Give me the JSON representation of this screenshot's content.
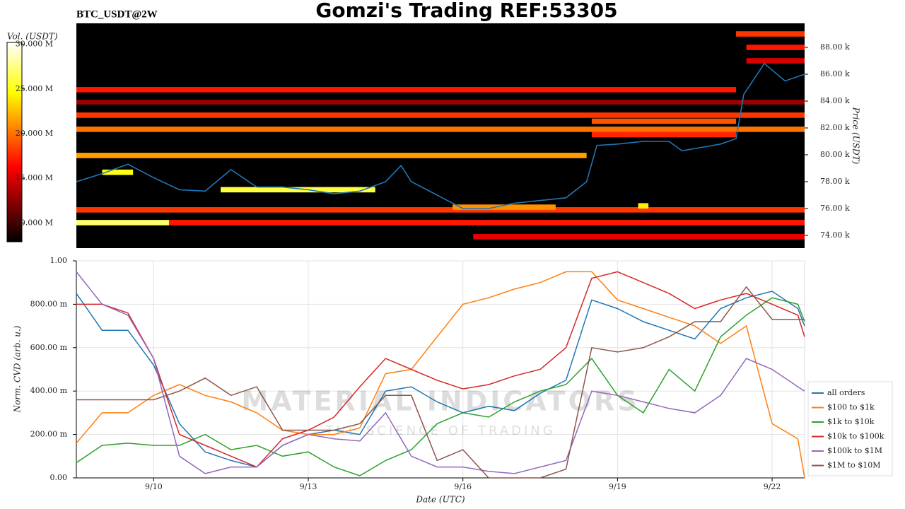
{
  "chart_data": [
    {
      "type": "heatmap",
      "title": "Gomzi's Trading REF:53305",
      "subtitle": "BTC_USDT@2W",
      "ylabel": "Price (USDT)",
      "xlim": [
        8.5,
        22.63
      ],
      "ylim": [
        73050,
        89790
      ],
      "yticks": [
        {
          "value": 74000,
          "label": "74.00 k"
        },
        {
          "value": 76000,
          "label": "76.00 k"
        },
        {
          "value": 78000,
          "label": "78.00 k"
        },
        {
          "value": 80000,
          "label": "80.00 k"
        },
        {
          "value": 82000,
          "label": "82.00 k"
        },
        {
          "value": 84000,
          "label": "84.00 k"
        },
        {
          "value": 86000,
          "label": "86.00 k"
        },
        {
          "value": 88000,
          "label": "88.00 k"
        }
      ],
      "colorbar": {
        "label": "Vol. (USDT)",
        "colormap": "hot",
        "lim": [
          7900000,
          30200000
        ],
        "ticks": [
          {
            "value": 10000000,
            "label": "10.000 M"
          },
          {
            "value": 15000000,
            "label": "15.000 M"
          },
          {
            "value": 20000000,
            "label": "20.000 M"
          },
          {
            "value": 25000000,
            "label": "25.000 M"
          },
          {
            "value": 30000000,
            "label": "30.000 M"
          }
        ]
      },
      "bands": [
        {
          "start": 8.5,
          "end": 21.3,
          "low": 84650,
          "high": 85050,
          "volume": 17000000
        },
        {
          "start": 8.5,
          "end": 22.63,
          "low": 83750,
          "high": 84100,
          "volume": 13000000
        },
        {
          "start": 8.5,
          "end": 22.63,
          "low": 82750,
          "high": 83150,
          "volume": 18000000
        },
        {
          "start": 8.5,
          "end": 22.63,
          "low": 81700,
          "high": 82100,
          "volume": 20000000
        },
        {
          "start": 8.5,
          "end": 18.4,
          "low": 79750,
          "high": 80150,
          "volume": 21500000
        },
        {
          "start": 8.5,
          "end": 22.63,
          "low": 75700,
          "high": 76100,
          "volume": 18000000
        },
        {
          "start": 8.5,
          "end": 10.3,
          "low": 74750,
          "high": 75150,
          "volume": 27000000
        },
        {
          "start": 10.3,
          "end": 22.63,
          "low": 74750,
          "high": 75150,
          "volume": 17000000
        },
        {
          "start": 16.2,
          "end": 22.63,
          "low": 73700,
          "high": 74100,
          "volume": 15500000
        },
        {
          "start": 21.3,
          "end": 22.63,
          "low": 88800,
          "high": 89200,
          "volume": 18000000
        },
        {
          "start": 21.5,
          "end": 22.63,
          "low": 87800,
          "high": 88200,
          "volume": 17000000
        },
        {
          "start": 21.5,
          "end": 22.63,
          "low": 86800,
          "high": 87200,
          "volume": 15000000
        },
        {
          "start": 18.5,
          "end": 21.3,
          "low": 82300,
          "high": 82700,
          "volume": 19000000
        },
        {
          "start": 18.5,
          "end": 21.3,
          "low": 81300,
          "high": 81700,
          "volume": 17500000
        },
        {
          "start": 11.3,
          "end": 14.3,
          "low": 77200,
          "high": 77600,
          "volume": 26000000
        },
        {
          "start": 15.8,
          "end": 17.8,
          "low": 75900,
          "high": 76300,
          "volume": 21000000
        },
        {
          "start": 9.0,
          "end": 9.6,
          "low": 78500,
          "high": 78900,
          "volume": 25000000
        },
        {
          "start": 19.4,
          "end": 19.6,
          "low": 76000,
          "high": 76400,
          "volume": 24000000
        }
      ],
      "line": {
        "color": "#1f77b4",
        "x": [
          8.5,
          9.0,
          9.5,
          10.0,
          10.5,
          11.0,
          11.5,
          12.0,
          12.5,
          13.0,
          13.5,
          14.0,
          14.5,
          14.8,
          15.0,
          15.5,
          16.0,
          16.5,
          17.0,
          17.5,
          18.0,
          18.4,
          18.6,
          19.0,
          19.5,
          20.0,
          20.25,
          21.0,
          21.3,
          21.45,
          21.85,
          22.25,
          22.63
        ],
        "values": [
          78000,
          78600,
          79300,
          78300,
          77400,
          77300,
          78900,
          77600,
          77600,
          77400,
          77100,
          77300,
          78000,
          79200,
          78000,
          77000,
          76000,
          76000,
          76400,
          76600,
          76800,
          78000,
          80700,
          80800,
          81000,
          81000,
          80300,
          80800,
          81200,
          84500,
          86800,
          85500,
          86000
        ]
      }
    },
    {
      "type": "line",
      "ylabel": "Norm. CVD (arb. u.)",
      "xlabel": "Date (UTC)",
      "xlim": [
        8.5,
        22.63
      ],
      "xticks": [
        {
          "value": 10,
          "label": "9/10"
        },
        {
          "value": 13,
          "label": "9/13"
        },
        {
          "value": 16,
          "label": "9/16"
        },
        {
          "value": 19,
          "label": "9/19"
        },
        {
          "value": 22,
          "label": "9/22"
        }
      ],
      "ylim": [
        0,
        1
      ],
      "yticks": [
        {
          "value": 0,
          "label": "0.00"
        },
        {
          "value": 0.2,
          "label": "200.00 m"
        },
        {
          "value": 0.4,
          "label": "400.00 m"
        },
        {
          "value": 0.6,
          "label": "600.00 m"
        },
        {
          "value": 0.8,
          "label": "800.00 m"
        },
        {
          "value": 1,
          "label": "1.00"
        }
      ],
      "grid": true,
      "legend": "right",
      "watermark": [
        "MATERIAL INDICATORS",
        "THE SCIENCE OF TRADING"
      ],
      "x": [
        8.5,
        9.0,
        9.5,
        10.0,
        10.5,
        11.0,
        11.5,
        12.0,
        12.5,
        13.0,
        13.5,
        14.0,
        14.5,
        15.0,
        15.5,
        16.0,
        16.5,
        17.0,
        17.5,
        18.0,
        18.5,
        19.0,
        19.5,
        20.0,
        20.5,
        21.0,
        21.5,
        22.0,
        22.5,
        22.63
      ],
      "series": [
        {
          "name": "all orders",
          "color": "#1f77b4",
          "values": [
            0.85,
            0.68,
            0.68,
            0.52,
            0.25,
            0.12,
            0.08,
            0.05,
            0.15,
            0.2,
            0.22,
            0.2,
            0.4,
            0.42,
            0.35,
            0.3,
            0.33,
            0.31,
            0.39,
            0.45,
            0.82,
            0.78,
            0.72,
            0.68,
            0.64,
            0.78,
            0.83,
            0.86,
            0.78,
            0.7
          ]
        },
        {
          "name": "$100 to $1k",
          "color": "#ff7f0e",
          "values": [
            0.16,
            0.3,
            0.3,
            0.38,
            0.43,
            0.38,
            0.35,
            0.3,
            0.22,
            0.2,
            0.2,
            0.23,
            0.48,
            0.5,
            0.65,
            0.8,
            0.83,
            0.87,
            0.9,
            0.95,
            0.95,
            0.82,
            0.78,
            0.74,
            0.7,
            0.62,
            0.7,
            0.25,
            0.18,
            0
          ]
        },
        {
          "name": "$1k to $10k",
          "color": "#2ca02c",
          "values": [
            0.07,
            0.15,
            0.16,
            0.15,
            0.15,
            0.2,
            0.13,
            0.15,
            0.1,
            0.12,
            0.05,
            0.01,
            0.08,
            0.13,
            0.25,
            0.3,
            0.28,
            0.35,
            0.4,
            0.43,
            0.55,
            0.38,
            0.3,
            0.5,
            0.4,
            0.65,
            0.75,
            0.83,
            0.8,
            0.72
          ]
        },
        {
          "name": "$10k to $100k",
          "color": "#d62728",
          "values": [
            0.8,
            0.8,
            0.76,
            0.55,
            0.2,
            0.15,
            0.1,
            0.05,
            0.18,
            0.22,
            0.28,
            0.42,
            0.55,
            0.5,
            0.45,
            0.41,
            0.43,
            0.47,
            0.5,
            0.6,
            0.92,
            0.95,
            0.9,
            0.85,
            0.78,
            0.82,
            0.85,
            0.8,
            0.75,
            0.65
          ]
        },
        {
          "name": "$100k to $1M",
          "color": "#9467bd",
          "values": [
            0.95,
            0.8,
            0.75,
            0.55,
            0.1,
            0.02,
            0.05,
            0.05,
            0.15,
            0.2,
            0.18,
            0.17,
            0.3,
            0.1,
            0.05,
            0.05,
            0.03,
            0.02,
            0.05,
            0.08,
            0.4,
            0.38,
            0.35,
            0.32,
            0.3,
            0.38,
            0.55,
            0.5,
            0.42,
            0.4
          ]
        },
        {
          "name": "$1M to $10M",
          "color": "#8c564b",
          "values": [
            0.36,
            0.36,
            0.36,
            0.36,
            0.4,
            0.46,
            0.38,
            0.42,
            0.22,
            0.22,
            0.22,
            0.25,
            0.38,
            0.38,
            0.08,
            0.13,
            0,
            0,
            0,
            0.04,
            0.6,
            0.58,
            0.6,
            0.65,
            0.72,
            0.72,
            0.88,
            0.73,
            0.73,
            0.73
          ]
        }
      ]
    }
  ]
}
